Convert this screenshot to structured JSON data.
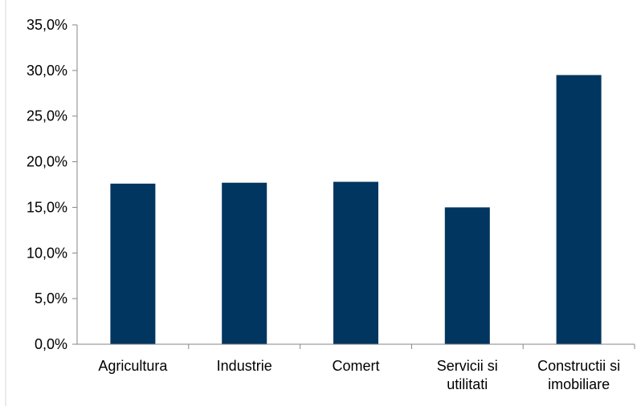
{
  "chart_data": {
    "type": "bar",
    "categories": [
      [
        "Agricultura"
      ],
      [
        "Industrie"
      ],
      [
        "Comert"
      ],
      [
        "Servicii si",
        "utilitati"
      ],
      [
        "Constructii si",
        "imobiliare"
      ]
    ],
    "values": [
      17.6,
      17.7,
      17.8,
      15.0,
      29.5
    ],
    "ylim": [
      0,
      35
    ],
    "yticks": [
      "0,0%",
      "5,0%",
      "10,0%",
      "15,0%",
      "20,0%",
      "25,0%",
      "30,0%",
      "35,0%"
    ],
    "bar_color": "#003660",
    "grid": false
  }
}
